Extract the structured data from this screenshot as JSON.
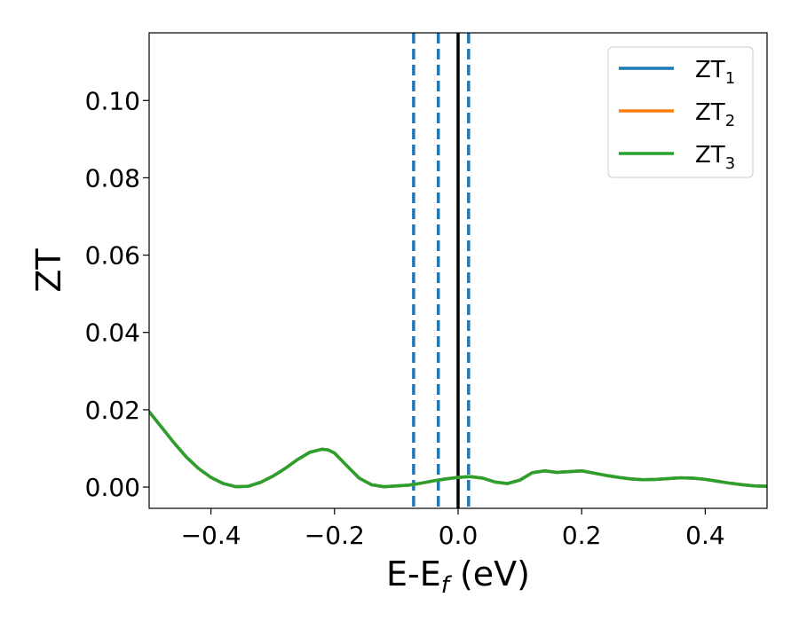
{
  "chart_data": {
    "type": "line",
    "xlabel": "E-E",
    "xlabel_sub": "f",
    "xlabel_unit": " (eV)",
    "ylabel": "ZT",
    "xlim": [
      -0.5,
      0.5
    ],
    "ylim": [
      -0.0055,
      0.1175
    ],
    "grid": false,
    "legend_position": "top-right",
    "xticks": [
      {
        "value": -0.4,
        "label": "−0.4"
      },
      {
        "value": -0.2,
        "label": "−0.2"
      },
      {
        "value": 0.0,
        "label": "0.0"
      },
      {
        "value": 0.2,
        "label": "0.2"
      },
      {
        "value": 0.4,
        "label": "0.4"
      }
    ],
    "yticks": [
      {
        "value": 0.0,
        "label": "0.00"
      },
      {
        "value": 0.02,
        "label": "0.02"
      },
      {
        "value": 0.04,
        "label": "0.04"
      },
      {
        "value": 0.06,
        "label": "0.06"
      },
      {
        "value": 0.08,
        "label": "0.08"
      },
      {
        "value": 0.1,
        "label": "0.10"
      }
    ],
    "vlines": [
      {
        "x": -0.072,
        "style": "dashed",
        "color": "#1f77b4"
      },
      {
        "x": -0.032,
        "style": "dashed",
        "color": "#1f77b4"
      },
      {
        "x": 0.0,
        "style": "solid",
        "color": "#000000"
      },
      {
        "x": 0.017,
        "style": "dashed",
        "color": "#1f77b4"
      }
    ],
    "x": [
      -0.5,
      -0.48,
      -0.46,
      -0.44,
      -0.42,
      -0.4,
      -0.38,
      -0.36,
      -0.34,
      -0.32,
      -0.3,
      -0.28,
      -0.26,
      -0.24,
      -0.22,
      -0.21,
      -0.2,
      -0.18,
      -0.16,
      -0.14,
      -0.12,
      -0.1,
      -0.08,
      -0.06,
      -0.04,
      -0.02,
      0.0,
      0.02,
      0.04,
      0.06,
      0.08,
      0.1,
      0.12,
      0.14,
      0.16,
      0.18,
      0.2,
      0.22,
      0.24,
      0.26,
      0.28,
      0.3,
      0.32,
      0.34,
      0.36,
      0.38,
      0.4,
      0.42,
      0.44,
      0.46,
      0.48,
      0.5
    ],
    "series": [
      {
        "name": "ZT",
        "sub": "1",
        "color": "#1f77b4",
        "values": [
          0.0195,
          0.0155,
          0.0115,
          0.0078,
          0.0048,
          0.0025,
          0.0009,
          0.0001,
          0.0002,
          0.0012,
          0.0028,
          0.0048,
          0.0071,
          0.009,
          0.0098,
          0.0096,
          0.0088,
          0.0055,
          0.0023,
          0.0006,
          0.0001,
          0.0003,
          0.0005,
          0.001,
          0.0016,
          0.0021,
          0.0025,
          0.0027,
          0.0023,
          0.0013,
          0.0009,
          0.0018,
          0.0037,
          0.0042,
          0.0038,
          0.004,
          0.0042,
          0.0036,
          0.003,
          0.0025,
          0.0021,
          0.0019,
          0.002,
          0.0022,
          0.0024,
          0.0023,
          0.002,
          0.0015,
          0.001,
          0.0006,
          0.0003,
          0.0002
        ]
      },
      {
        "name": "ZT",
        "sub": "2",
        "color": "#ff7f0e",
        "values": [
          0.0195,
          0.0155,
          0.0115,
          0.0078,
          0.0048,
          0.0025,
          0.0009,
          0.0001,
          0.0002,
          0.0012,
          0.0028,
          0.0048,
          0.0071,
          0.009,
          0.0098,
          0.0096,
          0.0088,
          0.0055,
          0.0023,
          0.0006,
          0.0001,
          0.0003,
          0.0005,
          0.001,
          0.0016,
          0.0021,
          0.0025,
          0.0027,
          0.0023,
          0.0013,
          0.0009,
          0.0018,
          0.0037,
          0.0042,
          0.0038,
          0.004,
          0.0042,
          0.0036,
          0.003,
          0.0025,
          0.0021,
          0.0019,
          0.002,
          0.0022,
          0.0024,
          0.0023,
          0.002,
          0.0015,
          0.001,
          0.0006,
          0.0003,
          0.0002
        ]
      },
      {
        "name": "ZT",
        "sub": "3",
        "color": "#2ca02c",
        "values": [
          0.0195,
          0.0155,
          0.0115,
          0.0078,
          0.0048,
          0.0025,
          0.0009,
          0.0001,
          0.0002,
          0.0012,
          0.0028,
          0.0048,
          0.0071,
          0.009,
          0.0098,
          0.0096,
          0.0088,
          0.0055,
          0.0023,
          0.0006,
          0.0001,
          0.0003,
          0.0005,
          0.001,
          0.0016,
          0.0021,
          0.0025,
          0.0027,
          0.0023,
          0.0013,
          0.0009,
          0.0018,
          0.0037,
          0.0042,
          0.0038,
          0.004,
          0.0042,
          0.0036,
          0.003,
          0.0025,
          0.0021,
          0.0019,
          0.002,
          0.0022,
          0.0024,
          0.0023,
          0.002,
          0.0015,
          0.001,
          0.0006,
          0.0003,
          0.0002
        ]
      }
    ]
  }
}
